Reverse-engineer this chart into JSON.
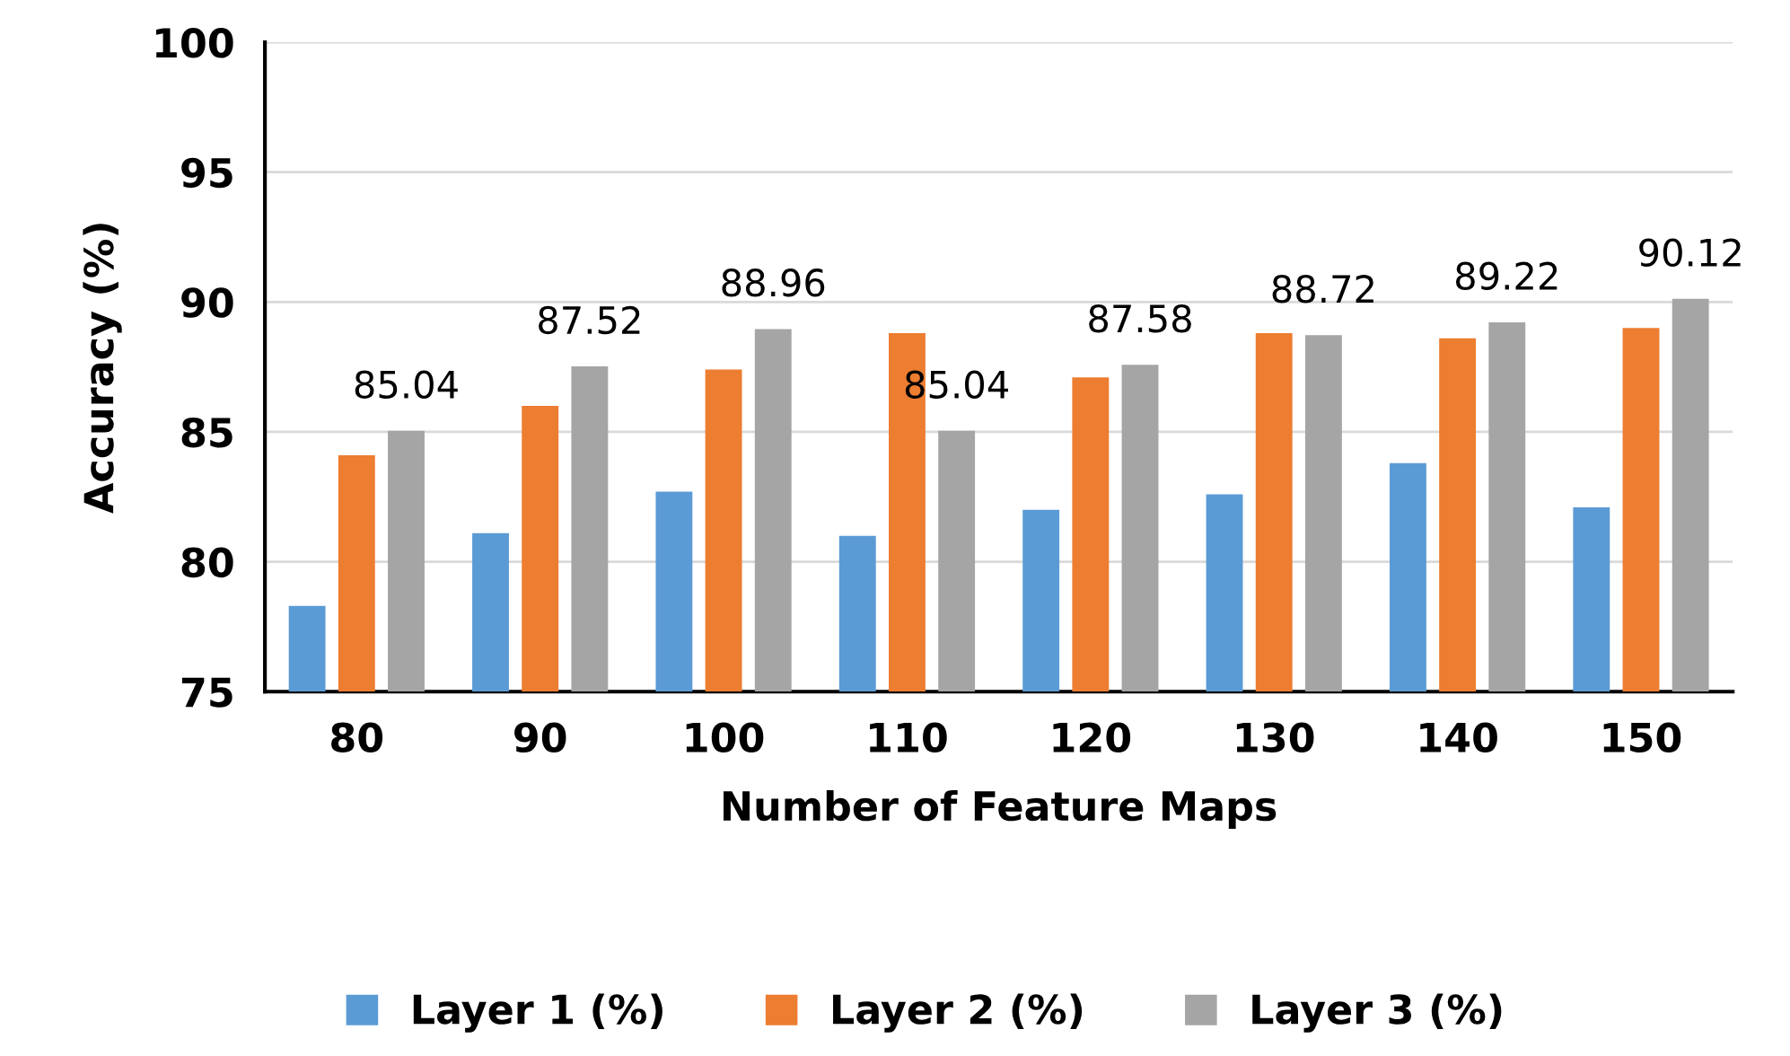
{
  "chart_data": {
    "type": "bar",
    "xlabel": "Number of Feature Maps",
    "ylabel": "Accuracy (%)",
    "categories": [
      "80",
      "90",
      "100",
      "110",
      "120",
      "130",
      "140",
      "150"
    ],
    "series": [
      {
        "name": "Layer 1 (%)",
        "color": "#5b9bd5",
        "values": [
          78.3,
          81.1,
          82.7,
          81.0,
          82.0,
          82.6,
          83.8,
          82.1
        ]
      },
      {
        "name": "Layer 2 (%)",
        "color": "#ed7d31",
        "values": [
          84.1,
          86.0,
          87.4,
          88.8,
          87.1,
          88.8,
          88.6,
          89.0
        ]
      },
      {
        "name": "Layer 3 (%)",
        "color": "#a5a5a5",
        "values": [
          85.04,
          87.52,
          88.96,
          85.04,
          87.58,
          88.72,
          89.22,
          90.12
        ],
        "value_labels": [
          "85.04",
          "87.52",
          "88.96",
          "85.04",
          "87.58",
          "88.72",
          "89.22",
          "90.12"
        ]
      }
    ],
    "ylim": [
      75,
      100
    ],
    "yticks": [
      75,
      80,
      85,
      90,
      95,
      100
    ],
    "grid": "y",
    "legend": "bottom"
  }
}
